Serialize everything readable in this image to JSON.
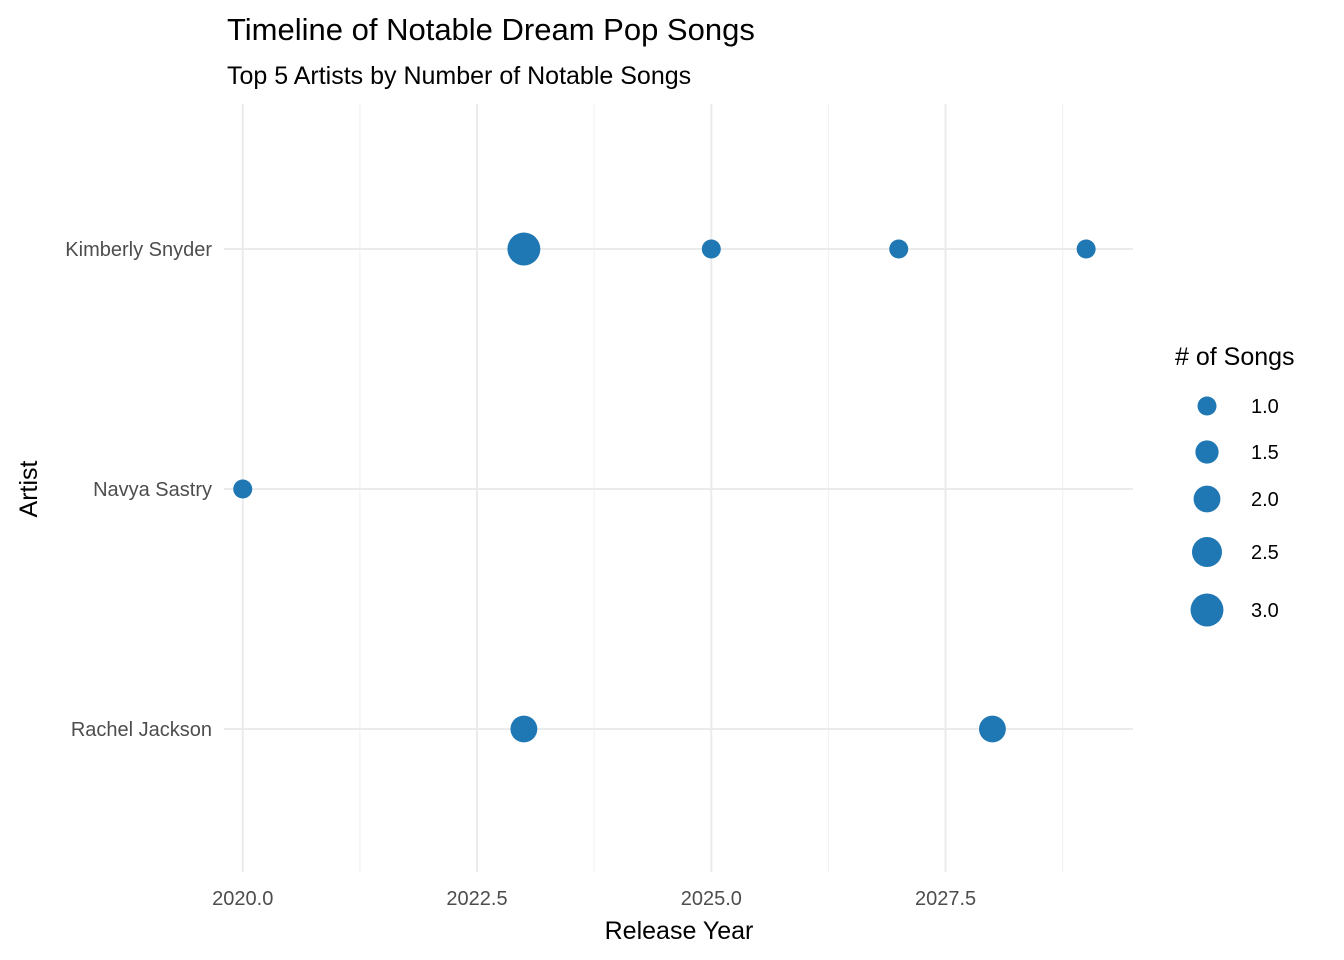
{
  "chart_data": {
    "type": "scatter",
    "title": "Timeline of Notable Dream Pop Songs",
    "subtitle": "Top 5 Artists by Number of Notable Songs",
    "xlabel": "Release Year",
    "ylabel": "Artist",
    "xlim": [
      2019.8,
      2029.5
    ],
    "x_ticks": [
      2020.0,
      2022.5,
      2025.0,
      2027.5
    ],
    "x_tick_labels": [
      "2020.0",
      "2022.5",
      "2025.0",
      "2027.5"
    ],
    "categories": [
      "Kimberly Snyder",
      "Navya Sastry",
      "Rachel Jackson"
    ],
    "grid": true,
    "point_color": "#1f77b4",
    "legend": {
      "title": "# of Songs",
      "placement": "right",
      "values": [
        1.0,
        1.5,
        2.0,
        2.5,
        3.0
      ],
      "labels": [
        "1.0",
        "1.5",
        "2.0",
        "2.5",
        "3.0"
      ]
    },
    "points": [
      {
        "artist": "Kimberly Snyder",
        "year": 2023,
        "songs": 3
      },
      {
        "artist": "Kimberly Snyder",
        "year": 2025,
        "songs": 1
      },
      {
        "artist": "Kimberly Snyder",
        "year": 2027,
        "songs": 1
      },
      {
        "artist": "Kimberly Snyder",
        "year": 2029,
        "songs": 1
      },
      {
        "artist": "Navya Sastry",
        "year": 2020,
        "songs": 1
      },
      {
        "artist": "Rachel Jackson",
        "year": 2023,
        "songs": 2
      },
      {
        "artist": "Rachel Jackson",
        "year": 2028,
        "songs": 2
      }
    ]
  }
}
